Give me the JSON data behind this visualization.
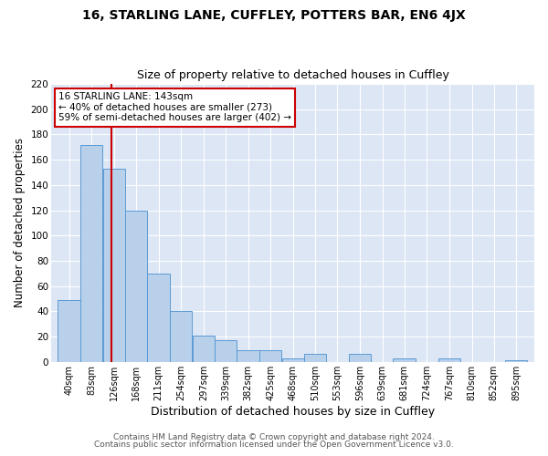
{
  "title": "16, STARLING LANE, CUFFLEY, POTTERS BAR, EN6 4JX",
  "subtitle": "Size of property relative to detached houses in Cuffley",
  "xlabel": "Distribution of detached houses by size in Cuffley",
  "ylabel": "Number of detached properties",
  "bin_labels": [
    "40sqm",
    "83sqm",
    "126sqm",
    "168sqm",
    "211sqm",
    "254sqm",
    "297sqm",
    "339sqm",
    "382sqm",
    "425sqm",
    "468sqm",
    "510sqm",
    "553sqm",
    "596sqm",
    "639sqm",
    "681sqm",
    "724sqm",
    "767sqm",
    "810sqm",
    "852sqm",
    "895sqm"
  ],
  "bin_edges": [
    40,
    83,
    126,
    168,
    211,
    254,
    297,
    339,
    382,
    425,
    468,
    510,
    553,
    596,
    639,
    681,
    724,
    767,
    810,
    852,
    895
  ],
  "bar_heights": [
    49,
    172,
    153,
    120,
    70,
    40,
    21,
    17,
    9,
    9,
    3,
    6,
    0,
    6,
    0,
    3,
    0,
    3,
    0,
    0,
    1
  ],
  "bar_color": "#b8d0ea",
  "bar_edge_color": "#5b9bd5",
  "plot_bg_color": "#dce6f5",
  "fig_bg_color": "#ffffff",
  "grid_color": "#ffffff",
  "vline_x": 143,
  "vline_color": "#cc0000",
  "annotation_title": "16 STARLING LANE: 143sqm",
  "annotation_line1": "← 40% of detached houses are smaller (273)",
  "annotation_line2": "59% of semi-detached houses are larger (402) →",
  "annotation_box_facecolor": "#ffffff",
  "annotation_box_edgecolor": "#cc0000",
  "ylim": [
    0,
    220
  ],
  "yticks": [
    0,
    20,
    40,
    60,
    80,
    100,
    120,
    140,
    160,
    180,
    200,
    220
  ],
  "footer1": "Contains HM Land Registry data © Crown copyright and database right 2024.",
  "footer2": "Contains public sector information licensed under the Open Government Licence v3.0."
}
